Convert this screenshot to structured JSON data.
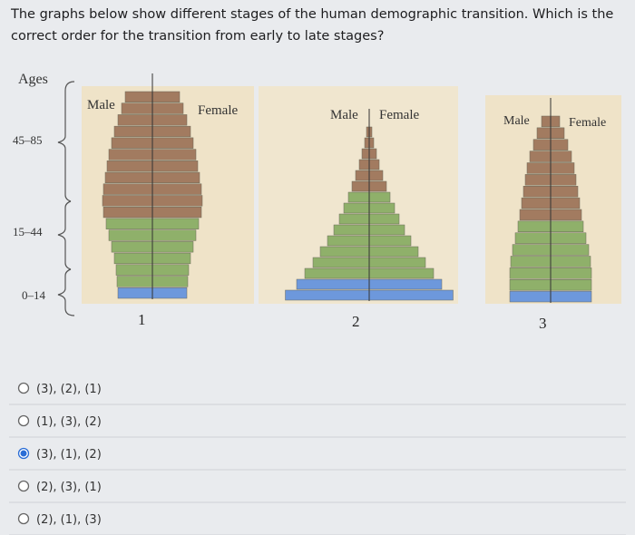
{
  "question": "The graphs below show different stages of the human demographic transition. Which is the correct order for the transition from early to late stages?",
  "ages": {
    "title": "Ages",
    "groups": [
      "45–85",
      "15–44",
      "0–14"
    ]
  },
  "pyramids": [
    {
      "male": "Male",
      "female": "Female",
      "number": "1"
    },
    {
      "male": "Male",
      "female": "Female",
      "number": "2"
    },
    {
      "male": "Male",
      "female": "Female",
      "number": "3"
    }
  ],
  "options": [
    {
      "text": "(3), (2), (1)",
      "selected": false
    },
    {
      "text": "(1), (3), (2)",
      "selected": false
    },
    {
      "text": "(3), (1), (2)",
      "selected": true
    },
    {
      "text": "(2), (3), (1)",
      "selected": false
    },
    {
      "text": "(2), (1), (3)",
      "selected": false
    }
  ]
}
